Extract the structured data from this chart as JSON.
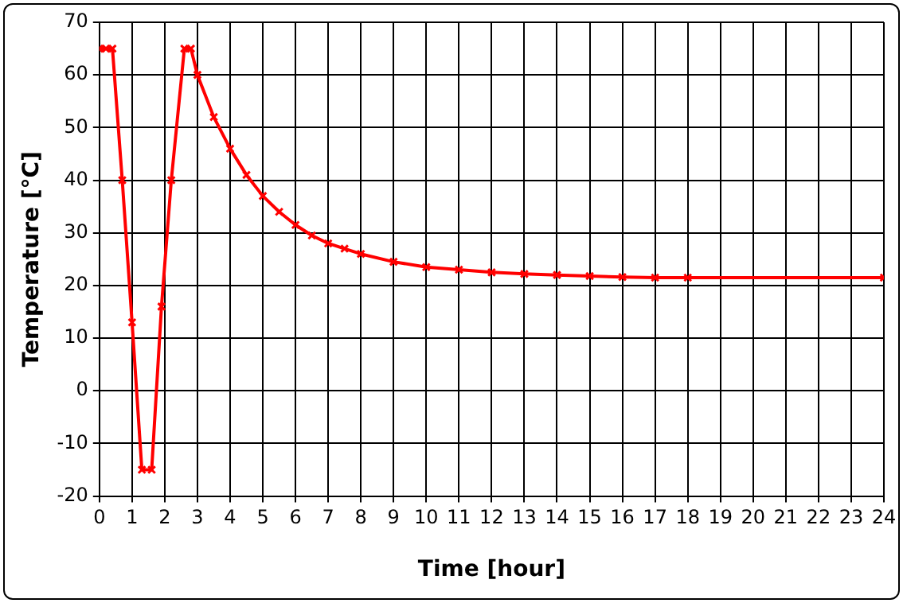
{
  "chart_data": {
    "type": "line",
    "xlabel": "Time [hour]",
    "ylabel": "Temperature [°C]",
    "x": [
      0,
      0.2,
      0.4,
      0.7,
      1.0,
      1.3,
      1.6,
      1.9,
      2.2,
      2.6,
      2.8,
      3.0,
      3.5,
      4.0,
      4.5,
      5.0,
      5.5,
      6.0,
      6.5,
      7.0,
      7.5,
      8.0,
      9.0,
      10.0,
      11.0,
      12.0,
      13.0,
      14.0,
      15.0,
      16.0,
      17.0,
      18.0,
      24.0
    ],
    "series": [
      {
        "color": "#ff0000",
        "values": [
          65,
          65,
          65,
          40,
          13,
          -15,
          -15,
          16,
          40,
          65,
          65,
          60,
          52,
          46,
          41,
          37,
          34,
          31.5,
          29.5,
          28,
          27,
          26,
          24.5,
          23.5,
          23,
          22.5,
          22.2,
          22,
          21.8,
          21.6,
          21.5,
          21.5,
          21.5
        ]
      }
    ],
    "xlim": [
      0,
      24
    ],
    "xticks": [
      0,
      1,
      2,
      3,
      4,
      5,
      6,
      7,
      8,
      9,
      10,
      11,
      12,
      13,
      14,
      15,
      16,
      17,
      18,
      19,
      20,
      21,
      22,
      23,
      24
    ],
    "ylim": [
      -20,
      70
    ],
    "yticks": [
      -20,
      -10,
      0,
      10,
      20,
      30,
      40,
      50,
      60,
      70
    ],
    "grid": true,
    "legend": false,
    "marker": "cross",
    "line_style": "solid"
  }
}
